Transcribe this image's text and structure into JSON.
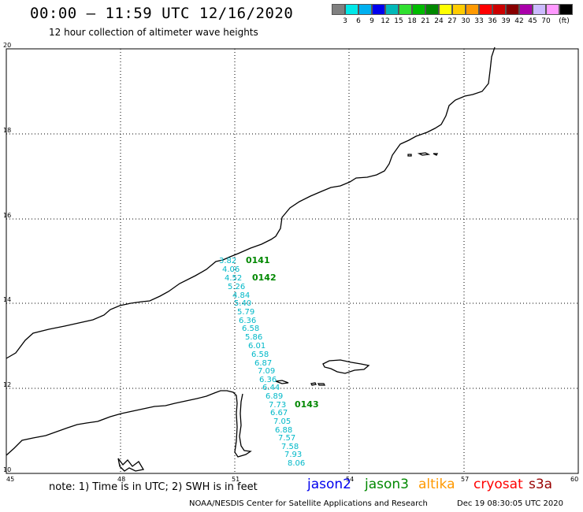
{
  "title": "00:00 – 11:59 UTC 12/16/2020",
  "subtitle": "12 hour collection of altimeter wave heights",
  "legend": {
    "colors": [
      "#808080",
      "#00e8e8",
      "#00b0f0",
      "#0000ee",
      "#00b8b8",
      "#30e030",
      "#00bb00",
      "#008800",
      "#ffff00",
      "#ffcc00",
      "#ff9900",
      "#ff0000",
      "#cc0000",
      "#880000",
      "#aa00aa",
      "#ccbbff",
      "#ff99ff",
      "#000000"
    ],
    "labels": [
      "3",
      "6",
      "9",
      "12",
      "15",
      "18",
      "21",
      "24",
      "27",
      "30",
      "33",
      "36",
      "39",
      "42",
      "45",
      "70"
    ],
    "unit": "(ft)"
  },
  "axes": {
    "lon_labels": [
      "45",
      "48",
      "51",
      "54",
      "57",
      "60"
    ],
    "lat_labels": [
      "20",
      "18",
      "16",
      "14",
      "12",
      "10"
    ]
  },
  "track_times": [
    "0141",
    "0142",
    "0143"
  ],
  "wave_heights": [
    "3.82",
    "4.06",
    "4.52",
    "5.26",
    "4.84",
    "5.40",
    "5.79",
    "6.36",
    "6.58",
    "5.86",
    "6.01",
    "6.58",
    "6.87",
    "7.09",
    "6.36",
    "6.44",
    "6.89",
    "7.73",
    "6.67",
    "7.05",
    "6.88",
    "7.57",
    "7.58",
    "7.93",
    "8.06"
  ],
  "note": "note: 1) Time is in UTC; 2) SWH is in feet",
  "satellites": [
    {
      "name": "jason2",
      "color": "#0000ee"
    },
    {
      "name": "jason3",
      "color": "#008800"
    },
    {
      "name": "altika",
      "color": "#ff9900"
    },
    {
      "name": "cryosat",
      "color": "#ff0000"
    },
    {
      "name": "s3a",
      "color": "#990000"
    }
  ],
  "footer": "NOAA/NESDIS Center for Satellite Applications and Research",
  "footer_timestamp": "Dec 19 08:30:05 UTC 2020"
}
